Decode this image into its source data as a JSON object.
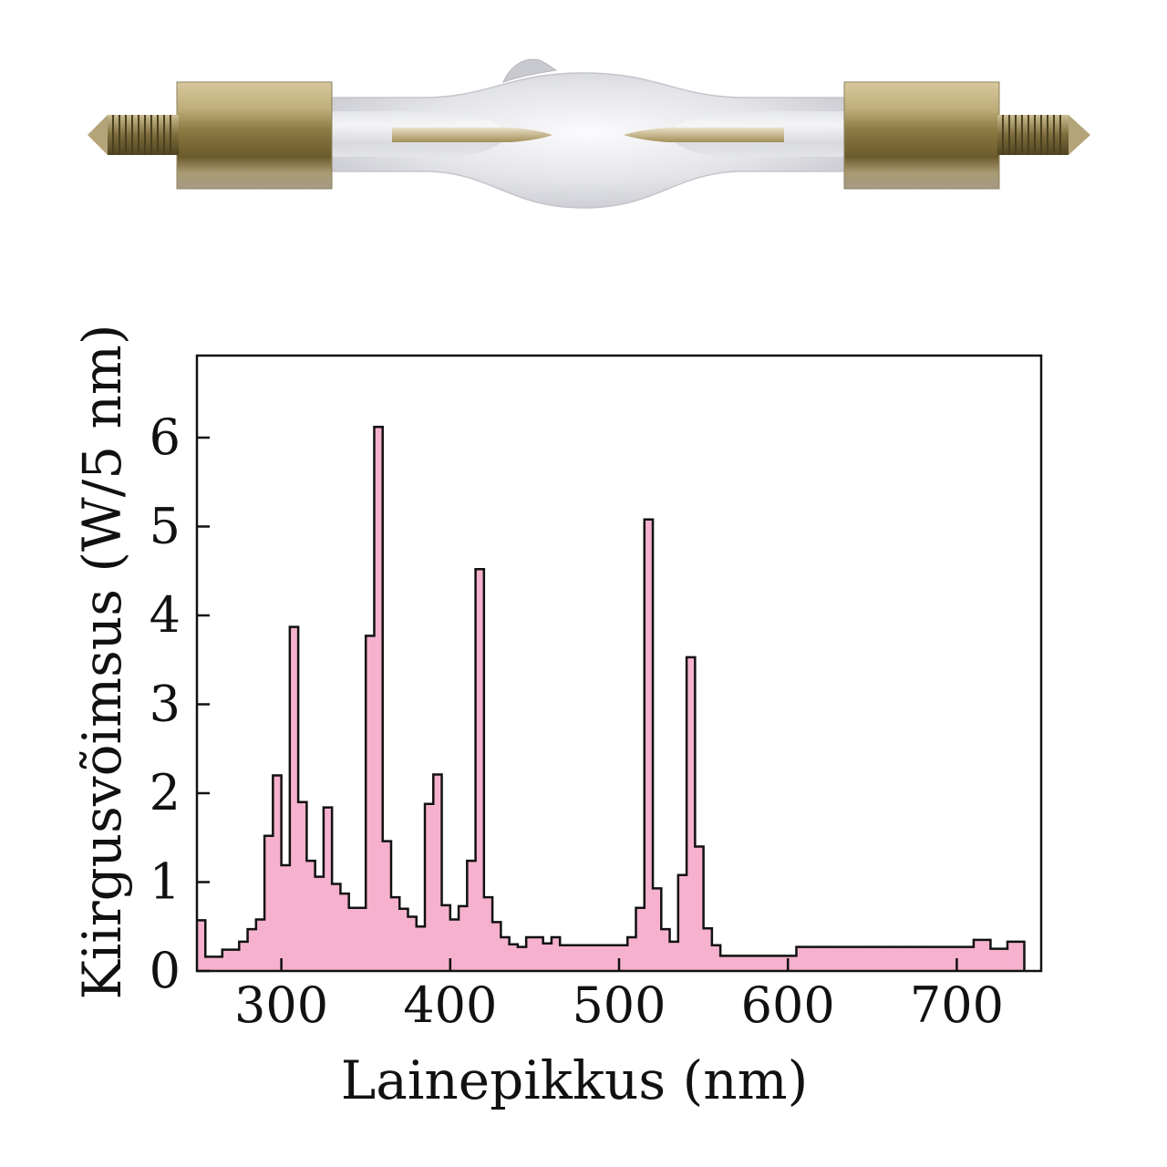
{
  "colors": {
    "bar_fill": "#f5b1cd",
    "bar_stroke": "#111111",
    "glass": "#dcdde2",
    "brass": "#8a7a4a"
  },
  "illustration": {
    "icon": "xenon-arc-lamp-icon"
  },
  "chart_data": {
    "type": "bar",
    "style": "step-histogram",
    "xlabel": "Lainepikkus (nm)",
    "ylabel": "Kiirgusvõimsus (W/5 nm)",
    "xlim": [
      250,
      750
    ],
    "ylim": [
      0,
      6.9
    ],
    "xticks": [
      "300",
      "400",
      "500",
      "600",
      "700"
    ],
    "yticks": [
      "0",
      "1",
      "2",
      "3",
      "4",
      "5",
      "6"
    ],
    "grid": false,
    "bin_width_nm": 5,
    "x": [
      250,
      255,
      260,
      265,
      270,
      275,
      280,
      285,
      290,
      295,
      300,
      305,
      310,
      315,
      320,
      325,
      330,
      335,
      340,
      345,
      350,
      355,
      360,
      365,
      370,
      375,
      380,
      385,
      390,
      395,
      400,
      405,
      410,
      415,
      420,
      425,
      430,
      435,
      440,
      445,
      450,
      455,
      460,
      465,
      470,
      475,
      480,
      485,
      490,
      495,
      500,
      505,
      510,
      515,
      520,
      525,
      530,
      535,
      540,
      545,
      550,
      555,
      560,
      565,
      570,
      575,
      580,
      585,
      590,
      595,
      600,
      605,
      610,
      615,
      620,
      625,
      630,
      635,
      640,
      645,
      650,
      655,
      660,
      665,
      670,
      675,
      680,
      685,
      690,
      695,
      700,
      705,
      710,
      715,
      720,
      725,
      730,
      735
    ],
    "values": [
      0.57,
      0.16,
      0.16,
      0.24,
      0.24,
      0.33,
      0.47,
      0.58,
      1.52,
      2.2,
      1.19,
      3.87,
      1.9,
      1.24,
      1.06,
      1.84,
      0.98,
      0.87,
      0.71,
      0.71,
      3.77,
      6.12,
      1.46,
      0.83,
      0.7,
      0.61,
      0.5,
      1.88,
      2.21,
      0.74,
      0.58,
      0.73,
      1.24,
      4.52,
      0.83,
      0.55,
      0.38,
      0.3,
      0.27,
      0.38,
      0.38,
      0.31,
      0.38,
      0.29,
      0.29,
      0.29,
      0.29,
      0.29,
      0.29,
      0.29,
      0.29,
      0.38,
      0.71,
      5.08,
      0.93,
      0.47,
      0.33,
      1.08,
      3.53,
      1.4,
      0.48,
      0.29,
      0.17,
      0.17,
      0.17,
      0.17,
      0.17,
      0.17,
      0.17,
      0.17,
      0.17,
      0.27,
      0.27,
      0.27,
      0.27,
      0.27,
      0.27,
      0.27,
      0.27,
      0.27,
      0.27,
      0.27,
      0.27,
      0.27,
      0.27,
      0.27,
      0.27,
      0.27,
      0.27,
      0.27,
      0.27,
      0.27,
      0.35,
      0.35,
      0.25,
      0.25,
      0.33,
      0.33
    ]
  }
}
